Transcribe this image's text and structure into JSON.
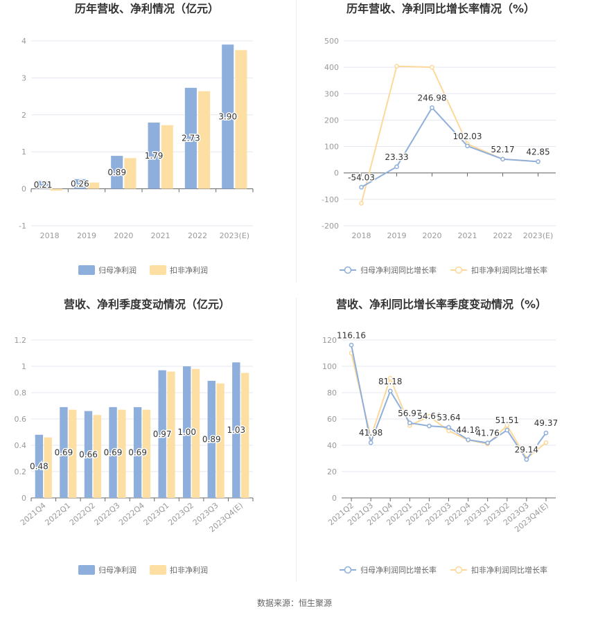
{
  "colors": {
    "blue": "#8eaedc",
    "orange": "#fddfa3",
    "grid": "#e5e7ef",
    "axis": "#666666"
  },
  "footer": {
    "label": "数据来源：",
    "source": "恒生聚源"
  },
  "chart_data": [
    {
      "type": "bar",
      "title": "历年营收、净利情况（亿元）",
      "categories": [
        "2018",
        "2019",
        "2020",
        "2021",
        "2022",
        "2023(E)"
      ],
      "ylim": [
        -1,
        4
      ],
      "yticks": [
        -1,
        0,
        1,
        2,
        3,
        4
      ],
      "grid": true,
      "legend_position": "bottom",
      "series": [
        {
          "name": "归母净利润",
          "values": [
            0.21,
            0.26,
            0.89,
            1.79,
            2.73,
            3.9
          ],
          "labels": [
            "0.21",
            "0.26",
            "0.89",
            "1.79",
            "2.73",
            "3.90"
          ]
        },
        {
          "name": "扣非净利润",
          "values": [
            -0.05,
            0.17,
            0.83,
            1.72,
            2.64,
            3.75
          ]
        }
      ]
    },
    {
      "type": "line",
      "title": "历年营收、净利同比增长率情况（%）",
      "categories": [
        "2018",
        "2019",
        "2020",
        "2021",
        "2022",
        "2023(E)"
      ],
      "ylim": [
        -200,
        500
      ],
      "yticks": [
        -200,
        -100,
        0,
        100,
        200,
        300,
        400,
        500
      ],
      "grid": true,
      "legend_position": "bottom",
      "series": [
        {
          "name": "归母净利润同比增长率",
          "values": [
            -54.03,
            23.33,
            246.98,
            102.03,
            52.17,
            42.85
          ],
          "labels": [
            "-54.03",
            "23.33",
            "246.98",
            "102.03",
            "52.17",
            "42.85"
          ]
        },
        {
          "name": "扣非净利润同比增长率",
          "values": [
            -115,
            404,
            400,
            110,
            52,
            43
          ]
        }
      ]
    },
    {
      "type": "bar",
      "title": "营收、净利季度变动情况（亿元）",
      "categories": [
        "2021Q4",
        "2022Q1",
        "2022Q2",
        "2022Q3",
        "2022Q4",
        "2023Q1",
        "2023Q2",
        "2023Q3",
        "2023Q4(E)"
      ],
      "ylim": [
        0,
        1.2
      ],
      "yticks": [
        "0",
        "0.2",
        "0.4",
        "0.6",
        "0.8",
        "1",
        "1.2"
      ],
      "grid": true,
      "legend_position": "bottom",
      "series": [
        {
          "name": "归母净利润",
          "values": [
            0.48,
            0.69,
            0.66,
            0.69,
            0.69,
            0.97,
            1.0,
            0.89,
            1.03
          ],
          "labels": [
            "0.48",
            "0.69",
            "0.66",
            "0.69",
            "0.69",
            "0.97",
            "1.00",
            "0.89",
            "1.03"
          ]
        },
        {
          "name": "扣非净利润",
          "values": [
            0.46,
            0.67,
            0.63,
            0.67,
            0.67,
            0.96,
            0.98,
            0.87,
            0.95
          ]
        }
      ]
    },
    {
      "type": "line",
      "title": "营收、净利同比增长率季度变动情况（%）",
      "categories": [
        "2021Q2",
        "2021Q3",
        "2021Q4",
        "2022Q1",
        "2022Q2",
        "2022Q3",
        "2022Q4",
        "2023Q1",
        "2023Q2",
        "2023Q3",
        "2023Q4(E)"
      ],
      "ylim": [
        0,
        120
      ],
      "yticks": [
        0,
        20,
        40,
        60,
        80,
        100,
        120
      ],
      "grid": true,
      "legend_position": "bottom",
      "series": [
        {
          "name": "归母净利润同比增长率",
          "values": [
            116.16,
            41.98,
            81.18,
            56.97,
            54.66,
            53.64,
            44.18,
            41.76,
            51.51,
            29.14,
            49.37
          ],
          "labels": [
            "116.16",
            "41.98",
            "81.18",
            "56.97",
            "54.66",
            "53.64",
            "44.18",
            "41.76",
            "51.51",
            "29.14",
            "49.37"
          ]
        },
        {
          "name": "扣非净利润同比增长率",
          "values": [
            110,
            46,
            91,
            55,
            62,
            51,
            44,
            41,
            55,
            30,
            42
          ]
        }
      ]
    }
  ]
}
